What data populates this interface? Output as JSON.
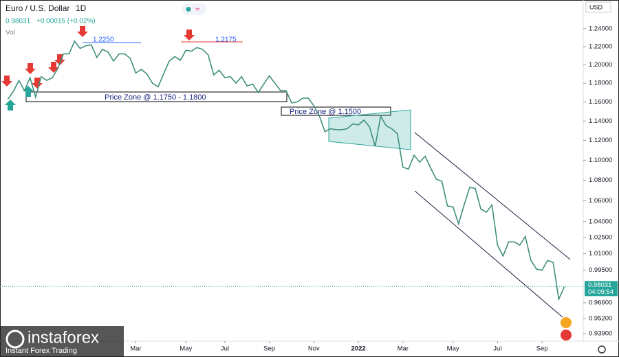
{
  "header": {
    "title": "Euro / U.S. Dollar",
    "interval": "1D",
    "change": "+0.00015 (+0.02%)",
    "vol": "Vol",
    "currency": "USD"
  },
  "watermark": {
    "brand": "instaforex",
    "tagline": "Instant Forex Trading"
  },
  "annotations": {
    "level_high": "1.2250",
    "level_second": "1.2175",
    "zone_one": "Price Zone @ 1.1750 - 1.1800",
    "zone_two": "Price Zone @ 1.1500"
  },
  "chart_data": {
    "type": "line",
    "title": "Euro / U.S. Dollar",
    "color": "#3f8f7c",
    "log_scale": true,
    "values": [
      1.163,
      1.171,
      1.183,
      1.172,
      1.186,
      1.165,
      1.187,
      1.183,
      1.186,
      1.196,
      1.212,
      1.212,
      1.226,
      1.218,
      1.221,
      1.222,
      1.208,
      1.217,
      1.214,
      1.204,
      1.212,
      1.212,
      1.207,
      1.191,
      1.195,
      1.19,
      1.18,
      1.176,
      1.19,
      1.204,
      1.209,
      1.205,
      1.216,
      1.215,
      1.219,
      1.217,
      1.211,
      1.189,
      1.194,
      1.186,
      1.187,
      1.18,
      1.187,
      1.177,
      1.179,
      1.17,
      1.179,
      1.188,
      1.18,
      1.172,
      1.172,
      1.159,
      1.16,
      1.164,
      1.164,
      1.156,
      1.145,
      1.129,
      1.132,
      1.131,
      1.131,
      1.132,
      1.137,
      1.136,
      1.141,
      1.134,
      1.114,
      1.145,
      1.135,
      1.132,
      1.127,
      1.093,
      1.091,
      1.105,
      1.098,
      1.104,
      1.092,
      1.081,
      1.079,
      1.055,
      1.054,
      1.038,
      1.056,
      1.073,
      1.072,
      1.052,
      1.049,
      1.056,
      1.018,
      1.008,
      1.021,
      1.021,
      1.018,
      1.026,
      1.004,
      0.996,
      0.995,
      1.004,
      1.002,
      0.969,
      0.98
    ],
    "xlim": [
      -1.4,
      103.4
    ],
    "xticks": [
      {
        "value": 23,
        "label": "Mar"
      },
      {
        "value": 32,
        "label": "May"
      },
      {
        "value": 39,
        "label": "Jul"
      },
      {
        "value": 47,
        "label": "Sep"
      },
      {
        "value": 55,
        "label": "Nov"
      },
      {
        "value": 63,
        "label": "2022"
      },
      {
        "value": 71,
        "label": "Mar"
      },
      {
        "value": 80,
        "label": "May"
      },
      {
        "value": 88,
        "label": "Jul"
      },
      {
        "value": 96,
        "label": "Sep"
      }
    ],
    "ylim": [
      0.9326,
      1.273
    ],
    "yticks": [
      {
        "value": 1.24,
        "label": "1.24000"
      },
      {
        "value": 1.22,
        "label": "1.22000"
      },
      {
        "value": 1.2,
        "label": "1.20000"
      },
      {
        "value": 1.18,
        "label": "1.18000"
      },
      {
        "value": 1.16,
        "label": "1.16000"
      },
      {
        "value": 1.14,
        "label": "1.14000"
      },
      {
        "value": 1.12,
        "label": "1.12000"
      },
      {
        "value": 1.1,
        "label": "1.10000"
      },
      {
        "value": 1.08,
        "label": "1.08000"
      },
      {
        "value": 1.06,
        "label": "1.06000"
      },
      {
        "value": 1.04,
        "label": "1.04000"
      },
      {
        "value": 1.025,
        "label": "1.02500"
      },
      {
        "value": 1.01,
        "label": "1.01000"
      },
      {
        "value": 0.995,
        "label": "0.99500"
      },
      {
        "value": 0.966,
        "label": "0.96600"
      },
      {
        "value": 0.952,
        "label": "0.95200"
      },
      {
        "value": 0.939,
        "label": "0.93900"
      }
    ],
    "last_price": 0.98031,
    "countdown": "04:09:54"
  }
}
